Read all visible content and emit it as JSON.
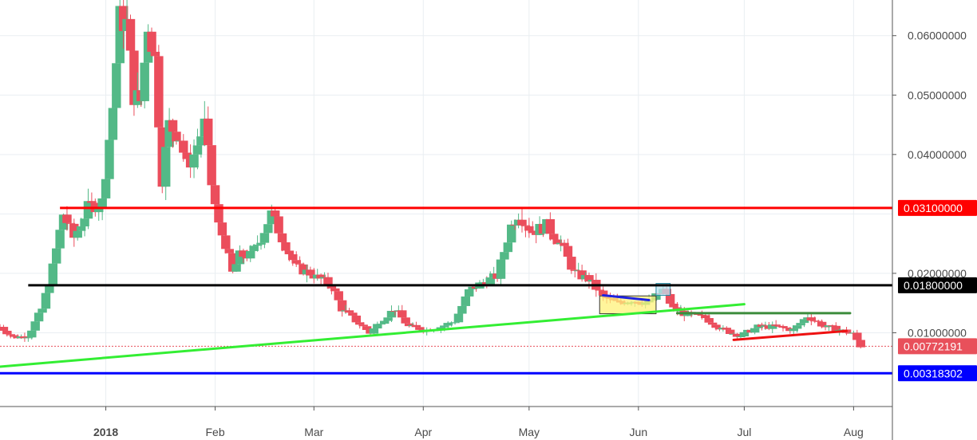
{
  "chart_data": {
    "type": "candlestick",
    "title": "",
    "xlabel": "",
    "ylabel": "",
    "x_ticks": [
      {
        "label": "2018",
        "date": "2018-01-01",
        "bold": true
      },
      {
        "label": "Feb",
        "date": "2018-02-01",
        "bold": false
      },
      {
        "label": "Mar",
        "date": "2018-03-01",
        "bold": false
      },
      {
        "label": "Apr",
        "date": "2018-04-01",
        "bold": false
      },
      {
        "label": "May",
        "date": "2018-05-01",
        "bold": false
      },
      {
        "label": "Jun",
        "date": "2018-06-01",
        "bold": false
      },
      {
        "label": "Jul",
        "date": "2018-07-01",
        "bold": false
      },
      {
        "label": "Aug",
        "date": "2018-08-01",
        "bold": false
      }
    ],
    "y_ticks": [
      {
        "label": "0.06000000",
        "value": 0.06
      },
      {
        "label": "0.05000000",
        "value": 0.05
      },
      {
        "label": "0.04000000",
        "value": 0.04
      },
      {
        "label": "0.02000000",
        "value": 0.02
      },
      {
        "label": "0.01000000",
        "value": 0.01
      }
    ],
    "ylim": [
      0.0,
      0.066
    ],
    "xlim": [
      "2017-12-02",
      "2018-08-12"
    ],
    "grid": true,
    "colors": {
      "up": "#53b987",
      "down": "#eb4d5c",
      "grid": "#e9eef2",
      "axis": "#555555"
    },
    "price_tags": [
      {
        "label": "0.03100000",
        "value": 0.031,
        "color": "#ff0000"
      },
      {
        "label": "0.01800000",
        "value": 0.018,
        "color": "#000000"
      },
      {
        "label": "0.00772191",
        "value": 0.00772191,
        "color": "#e8505b"
      },
      {
        "label": "0.00318302",
        "value": 0.00318302,
        "color": "#0000ff"
      }
    ],
    "horizontal_lines": [
      {
        "value": 0.031,
        "from": "2017-12-19",
        "color": "#ff0000"
      },
      {
        "value": 0.018,
        "from": "2017-12-10",
        "color": "#000000"
      },
      {
        "value": 0.00318302,
        "from": "2017-12-02",
        "color": "#0000ff"
      },
      {
        "value": 0.00772191,
        "from": "2017-12-02",
        "color": "#e8505b",
        "dotted": true
      }
    ],
    "trendlines": [
      {
        "name": "support",
        "color": "#33ee33",
        "from": {
          "date": "2017-12-02",
          "value": 0.0043
        },
        "to": {
          "date": "2018-07-01",
          "value": 0.0148
        }
      },
      {
        "name": "wedge-top",
        "color": "#1e22e0",
        "from": {
          "date": "2018-05-22",
          "value": 0.0163
        },
        "to": {
          "date": "2018-06-04",
          "value": 0.0155
        }
      },
      {
        "name": "range-top",
        "color": "#3c8c3c",
        "from": {
          "date": "2018-06-12",
          "value": 0.0133
        },
        "to": {
          "date": "2018-07-31",
          "value": 0.0133
        }
      },
      {
        "name": "range-bottom",
        "color": "#ee1111",
        "from": {
          "date": "2018-06-28",
          "value": 0.0088
        },
        "to": {
          "date": "2018-07-30",
          "value": 0.0103
        }
      }
    ],
    "rectangles": [
      {
        "color": "#fff27a",
        "border": "#333333",
        "from": {
          "date": "2018-05-21",
          "value": 0.0162
        },
        "to": {
          "date": "2018-06-06",
          "value": 0.0132
        }
      },
      {
        "color": "#bde3f0",
        "border": "#2c8fa8",
        "from": {
          "date": "2018-06-06",
          "value": 0.0183
        },
        "to": {
          "date": "2018-06-10",
          "value": 0.0163
        }
      }
    ],
    "path_points": [
      [
        "2017-12-02",
        0.011
      ],
      [
        "2017-12-06",
        0.0092
      ],
      [
        "2017-12-10",
        0.0095
      ],
      [
        "2017-12-14",
        0.014
      ],
      [
        "2017-12-17",
        0.021
      ],
      [
        "2017-12-20",
        0.03
      ],
      [
        "2017-12-23",
        0.026
      ],
      [
        "2017-12-27",
        0.031
      ],
      [
        "2017-12-31",
        0.032
      ],
      [
        "2018-01-03",
        0.048
      ],
      [
        "2018-01-05",
        0.063
      ],
      [
        "2018-01-07",
        0.062
      ],
      [
        "2018-01-09",
        0.05
      ],
      [
        "2018-01-11",
        0.049
      ],
      [
        "2018-01-13",
        0.062
      ],
      [
        "2018-01-15",
        0.056
      ],
      [
        "2018-01-17",
        0.036
      ],
      [
        "2018-01-19",
        0.045
      ],
      [
        "2018-01-22",
        0.043
      ],
      [
        "2018-01-24",
        0.038
      ],
      [
        "2018-01-26",
        0.04
      ],
      [
        "2018-01-29",
        0.045
      ],
      [
        "2018-01-31",
        0.035
      ],
      [
        "2018-02-02",
        0.028
      ],
      [
        "2018-02-04",
        0.025
      ],
      [
        "2018-02-06",
        0.02
      ],
      [
        "2018-02-08",
        0.023
      ],
      [
        "2018-02-11",
        0.023
      ],
      [
        "2018-02-14",
        0.026
      ],
      [
        "2018-02-17",
        0.03
      ],
      [
        "2018-02-20",
        0.026
      ],
      [
        "2018-02-24",
        0.021
      ],
      [
        "2018-02-28",
        0.02
      ],
      [
        "2018-03-03",
        0.019
      ],
      [
        "2018-03-06",
        0.018
      ],
      [
        "2018-03-09",
        0.014
      ],
      [
        "2018-03-13",
        0.012
      ],
      [
        "2018-03-17",
        0.01
      ],
      [
        "2018-03-20",
        0.012
      ],
      [
        "2018-03-24",
        0.014
      ],
      [
        "2018-03-28",
        0.011
      ],
      [
        "2018-04-02",
        0.0105
      ],
      [
        "2018-04-06",
        0.011
      ],
      [
        "2018-04-10",
        0.012
      ],
      [
        "2018-04-14",
        0.017
      ],
      [
        "2018-04-18",
        0.0185
      ],
      [
        "2018-04-22",
        0.0195
      ],
      [
        "2018-04-26",
        0.028
      ],
      [
        "2018-04-28",
        0.03
      ],
      [
        "2018-05-02",
        0.027
      ],
      [
        "2018-05-06",
        0.028
      ],
      [
        "2018-05-10",
        0.025
      ],
      [
        "2018-05-14",
        0.02
      ],
      [
        "2018-05-18",
        0.019
      ],
      [
        "2018-05-22",
        0.016
      ],
      [
        "2018-05-26",
        0.015
      ],
      [
        "2018-05-30",
        0.0155
      ],
      [
        "2018-06-04",
        0.015
      ],
      [
        "2018-06-08",
        0.0172
      ],
      [
        "2018-06-11",
        0.014
      ],
      [
        "2018-06-15",
        0.013
      ],
      [
        "2018-06-20",
        0.0125
      ],
      [
        "2018-06-25",
        0.0105
      ],
      [
        "2018-06-30",
        0.0095
      ],
      [
        "2018-07-05",
        0.011
      ],
      [
        "2018-07-10",
        0.011
      ],
      [
        "2018-07-15",
        0.0105
      ],
      [
        "2018-07-19",
        0.0128
      ],
      [
        "2018-07-24",
        0.011
      ],
      [
        "2018-07-28",
        0.0105
      ],
      [
        "2018-08-01",
        0.0098
      ],
      [
        "2018-08-03",
        0.00772
      ]
    ]
  }
}
